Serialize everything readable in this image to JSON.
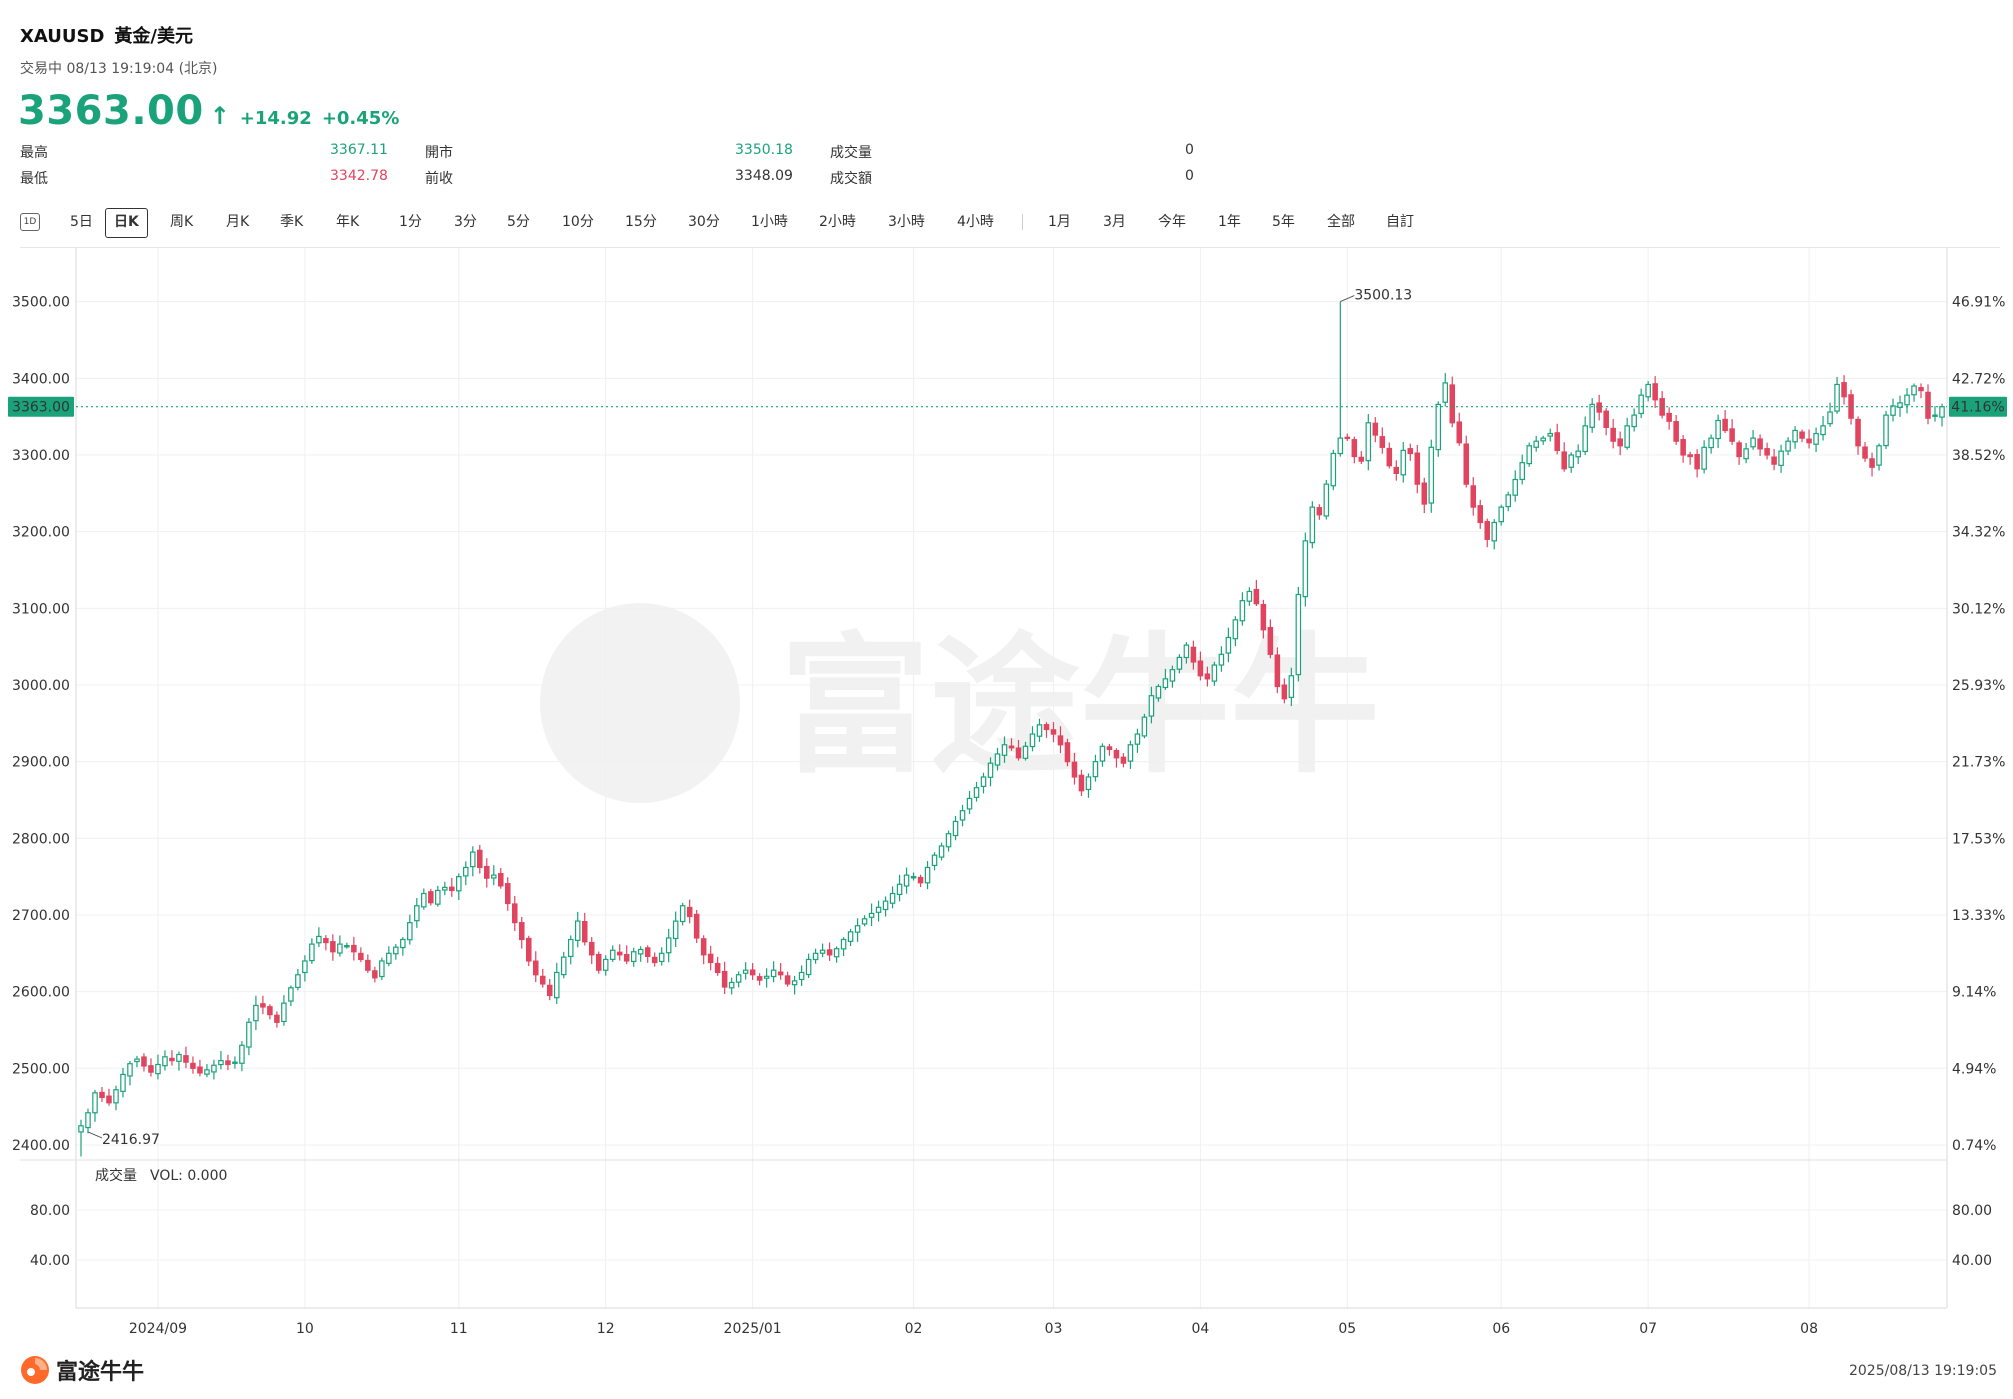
{
  "header": {
    "symbol": "XAUUSD",
    "name": "黃金/美元",
    "status": "交易中 08/13 19:19:04 (北京)",
    "price": "3363.00",
    "change": "+14.92",
    "change_pct": "+0.45%"
  },
  "stats": {
    "high_label": "最高",
    "high_value": "3367.11",
    "low_label": "最低",
    "low_value": "3342.78",
    "open_label": "開市",
    "open_value": "3350.18",
    "prev_label": "前收",
    "prev_value": "3348.09",
    "volume_label": "成交量",
    "volume_value": "0",
    "amount_label": "成交額",
    "amount_value": "0"
  },
  "toolbar": {
    "icon_label": "1D",
    "items": [
      "5日",
      "日K",
      "周K",
      "月K",
      "季K",
      "年K",
      "1分",
      "3分",
      "5分",
      "10分",
      "15分",
      "30分",
      "1小時",
      "2小時",
      "3小時",
      "4小時"
    ],
    "ranges": [
      "1月",
      "3月",
      "今年",
      "1年",
      "5年",
      "全部",
      "自訂"
    ],
    "active": "日K"
  },
  "chart_data": {
    "type": "candlestick",
    "y_ticks": [
      "3500.00",
      "3400.00",
      "3300.00",
      "3200.00",
      "3100.00",
      "3000.00",
      "2900.00",
      "2800.00",
      "2700.00",
      "2600.00",
      "2500.00",
      "2400.00"
    ],
    "pct_ticks": [
      "46.91%",
      "42.72%",
      "38.52%",
      "34.32%",
      "30.12%",
      "25.93%",
      "21.73%",
      "17.53%",
      "13.33%",
      "9.14%",
      "4.94%",
      "0.74%"
    ],
    "ylim": [
      2383,
      3570
    ],
    "x_labels": [
      "2024/09",
      "10",
      "11",
      "12",
      "2025/01",
      "02",
      "03",
      "04",
      "05",
      "06",
      "07",
      "08"
    ],
    "x_label_index": [
      11,
      32,
      54,
      75,
      96,
      119,
      139,
      160,
      181,
      203,
      224,
      247
    ],
    "current_price": 3363.0,
    "current_price_label": "3363.00",
    "current_pct_label": "41.16%",
    "max_label": "3500.13",
    "max_value": 3500.13,
    "max_index": 180,
    "min_label": "2416.97",
    "min_value": 2416.97,
    "min_index": 1,
    "closes": [
      2425,
      2442,
      2468,
      2462,
      2455,
      2472,
      2492,
      2506,
      2512,
      2503,
      2495,
      2505,
      2515,
      2510,
      2518,
      2508,
      2500,
      2494,
      2498,
      2504,
      2510,
      2505,
      2508,
      2530,
      2560,
      2582,
      2580,
      2570,
      2560,
      2585,
      2605,
      2622,
      2640,
      2662,
      2672,
      2664,
      2652,
      2662,
      2660,
      2652,
      2642,
      2628,
      2618,
      2640,
      2650,
      2658,
      2668,
      2690,
      2712,
      2728,
      2716,
      2732,
      2736,
      2732,
      2750,
      2762,
      2782,
      2762,
      2748,
      2752,
      2738,
      2715,
      2690,
      2668,
      2640,
      2622,
      2610,
      2595,
      2625,
      2645,
      2668,
      2692,
      2665,
      2648,
      2628,
      2642,
      2654,
      2648,
      2640,
      2652,
      2655,
      2646,
      2638,
      2650,
      2670,
      2692,
      2712,
      2698,
      2670,
      2648,
      2638,
      2625,
      2606,
      2612,
      2622,
      2628,
      2622,
      2615,
      2620,
      2628,
      2622,
      2610,
      2614,
      2625,
      2642,
      2650,
      2654,
      2648,
      2656,
      2668,
      2678,
      2686,
      2695,
      2702,
      2710,
      2718,
      2728,
      2740,
      2752,
      2750,
      2742,
      2762,
      2778,
      2790,
      2806,
      2822,
      2836,
      2852,
      2866,
      2880,
      2898,
      2910,
      2922,
      2918,
      2905,
      2920,
      2936,
      2948,
      2942,
      2936,
      2922,
      2900,
      2880,
      2862,
      2880,
      2900,
      2920,
      2916,
      2905,
      2898,
      2922,
      2936,
      2958,
      2986,
      2998,
      3008,
      3020,
      3036,
      3052,
      3030,
      3012,
      3008,
      3026,
      3040,
      3062,
      3085,
      3110,
      3122,
      3106,
      3072,
      3040,
      2998,
      2982,
      3012,
      3118,
      3188,
      3232,
      3222,
      3262,
      3302,
      3322,
      3322,
      3298,
      3292,
      3342,
      3326,
      3310,
      3286,
      3276,
      3306,
      3302,
      3262,
      3236,
      3310,
      3366,
      3394,
      3342,
      3316,
      3262,
      3232,
      3212,
      3190,
      3212,
      3232,
      3248,
      3268,
      3290,
      3312,
      3318,
      3322,
      3328,
      3306,
      3282,
      3300,
      3305,
      3338,
      3366,
      3356,
      3336,
      3318,
      3312,
      3338,
      3352,
      3378,
      3392,
      3372,
      3352,
      3344,
      3318,
      3300,
      3298,
      3282,
      3310,
      3322,
      3345,
      3332,
      3318,
      3298,
      3308,
      3322,
      3308,
      3300,
      3288,
      3305,
      3318,
      3332,
      3322,
      3316,
      3328,
      3338,
      3356,
      3392,
      3376,
      3348,
      3312,
      3296,
      3284,
      3312,
      3352,
      3364,
      3368,
      3378,
      3390,
      3384,
      3348,
      3352,
      3363
    ]
  },
  "volume": {
    "title": "成交量",
    "vol_label": "VOL: 0.000",
    "ticks": [
      "80.00",
      "40.00"
    ]
  },
  "footer": {
    "logo_text": "富途牛牛",
    "timestamp": "2025/08/13 19:19:05"
  },
  "colors": {
    "up": "#1aa37a",
    "down": "#e0445f",
    "grid": "#f0f0f0"
  }
}
